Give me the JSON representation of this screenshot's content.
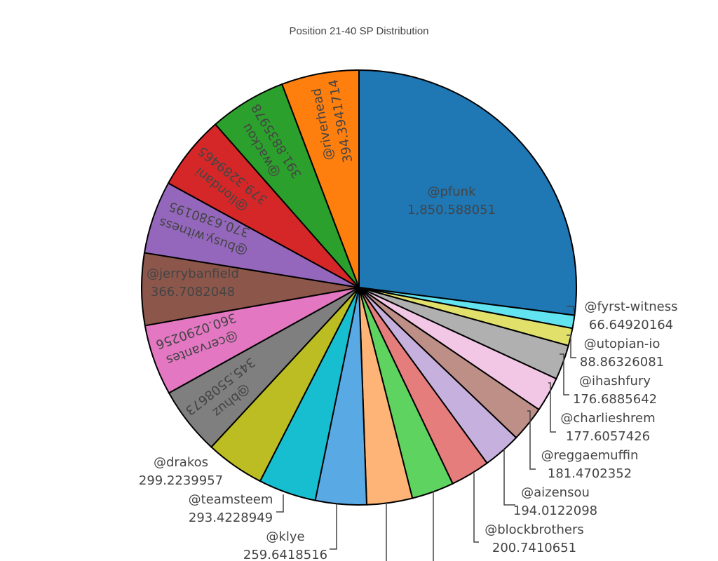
{
  "chart_data": {
    "type": "pie",
    "title": "Position 21-40 SP Distribution",
    "direction": "clockwise",
    "start": "12 o'clock",
    "slice_border": "#000000",
    "slices": [
      {
        "label": "@pfunk",
        "value": 1850.588051,
        "value_text": "1,850.588051",
        "color": "#1f77b4"
      },
      {
        "label": "@fyrst-witness",
        "value": 66.64920164,
        "value_text": "66.64920164",
        "color": "#62e3f0"
      },
      {
        "label": "@utopian-io",
        "value": 88.86326081,
        "value_text": "88.86326081",
        "color": "#e0e06a"
      },
      {
        "label": "@ihashfury",
        "value": 176.6885642,
        "value_text": "176.6885642",
        "color": "#b0b0b0"
      },
      {
        "label": "@charlieshrem",
        "value": 177.6057426,
        "value_text": "177.6057426",
        "color": "#f2c6e5"
      },
      {
        "label": "@reggaemuffin",
        "value": 181.4702352,
        "value_text": "181.4702352",
        "color": "#be8f87"
      },
      {
        "label": "@aizensou",
        "value": 194.0122098,
        "value_text": "194.0122098",
        "color": "#c6b0dd"
      },
      {
        "label": "@blockbrothers",
        "value": 200.7410651,
        "value_text": "200.7410651",
        "color": "#e67d7d"
      },
      {
        "label": "",
        "value": 215.0,
        "value_text": "",
        "color": "#5fd35f"
      },
      {
        "label": "",
        "value": 232.0,
        "value_text": "",
        "color": "#feb476"
      },
      {
        "label": "@klye",
        "value": 259.6418516,
        "value_text": "259.6418516",
        "color": "#58a9e4"
      },
      {
        "label": "@teamsteem",
        "value": 293.4228949,
        "value_text": "293.4228949",
        "color": "#17becf"
      },
      {
        "label": "@drakos",
        "value": 299.2239957,
        "value_text": "299.2239957",
        "color": "#bcbd22"
      },
      {
        "label": "@bhuz",
        "value": 345.5508673,
        "value_text": "345.5508673",
        "color": "#7f7f7f"
      },
      {
        "label": "@cervantes",
        "value": 360.0290256,
        "value_text": "360.0290256",
        "color": "#e377c2"
      },
      {
        "label": "@jerrybanfield",
        "value": 366.7082048,
        "value_text": "366.7082048",
        "color": "#8c564b"
      },
      {
        "label": "@busy.witness",
        "value": 370.6380195,
        "value_text": "370.6380195",
        "color": "#9467bd"
      },
      {
        "label": "@liondani",
        "value": 379.3289465,
        "value_text": "379.3289465",
        "color": "#d62728"
      },
      {
        "label": "@wackou",
        "value": 391.8835978,
        "value_text": "391.8835978",
        "color": "#2ca02c"
      },
      {
        "label": "@riverhead",
        "value": 394.3941714,
        "value_text": "394.3941714",
        "color": "#ff7f0e"
      }
    ]
  }
}
